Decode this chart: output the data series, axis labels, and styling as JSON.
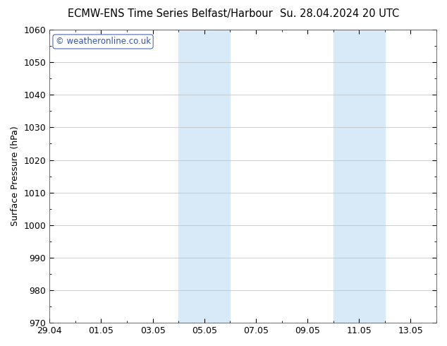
{
  "title_left": "ECMW-ENS Time Series Belfast/Harbour",
  "title_right": "Su. 28.04.2024 20 UTC",
  "ylabel": "Surface Pressure (hPa)",
  "ylim": [
    970,
    1060
  ],
  "yticks": [
    970,
    980,
    990,
    1000,
    1010,
    1020,
    1030,
    1040,
    1050,
    1060
  ],
  "xtick_labels": [
    "29.04",
    "01.05",
    "03.05",
    "05.05",
    "07.05",
    "09.05",
    "11.05",
    "13.05"
  ],
  "xtick_positions": [
    0,
    2,
    4,
    6,
    8,
    10,
    12,
    14
  ],
  "shaded_bands": [
    {
      "x_start": 5,
      "x_end": 7
    },
    {
      "x_start": 11,
      "x_end": 13
    }
  ],
  "shaded_color": "#d8eaf8",
  "watermark_text": "© weatheronline.co.uk",
  "watermark_color": "#3355aa",
  "background_color": "#ffffff",
  "plot_bg_color": "#ffffff",
  "title_fontsize": 10.5,
  "axis_fontsize": 9,
  "tick_fontsize": 9
}
